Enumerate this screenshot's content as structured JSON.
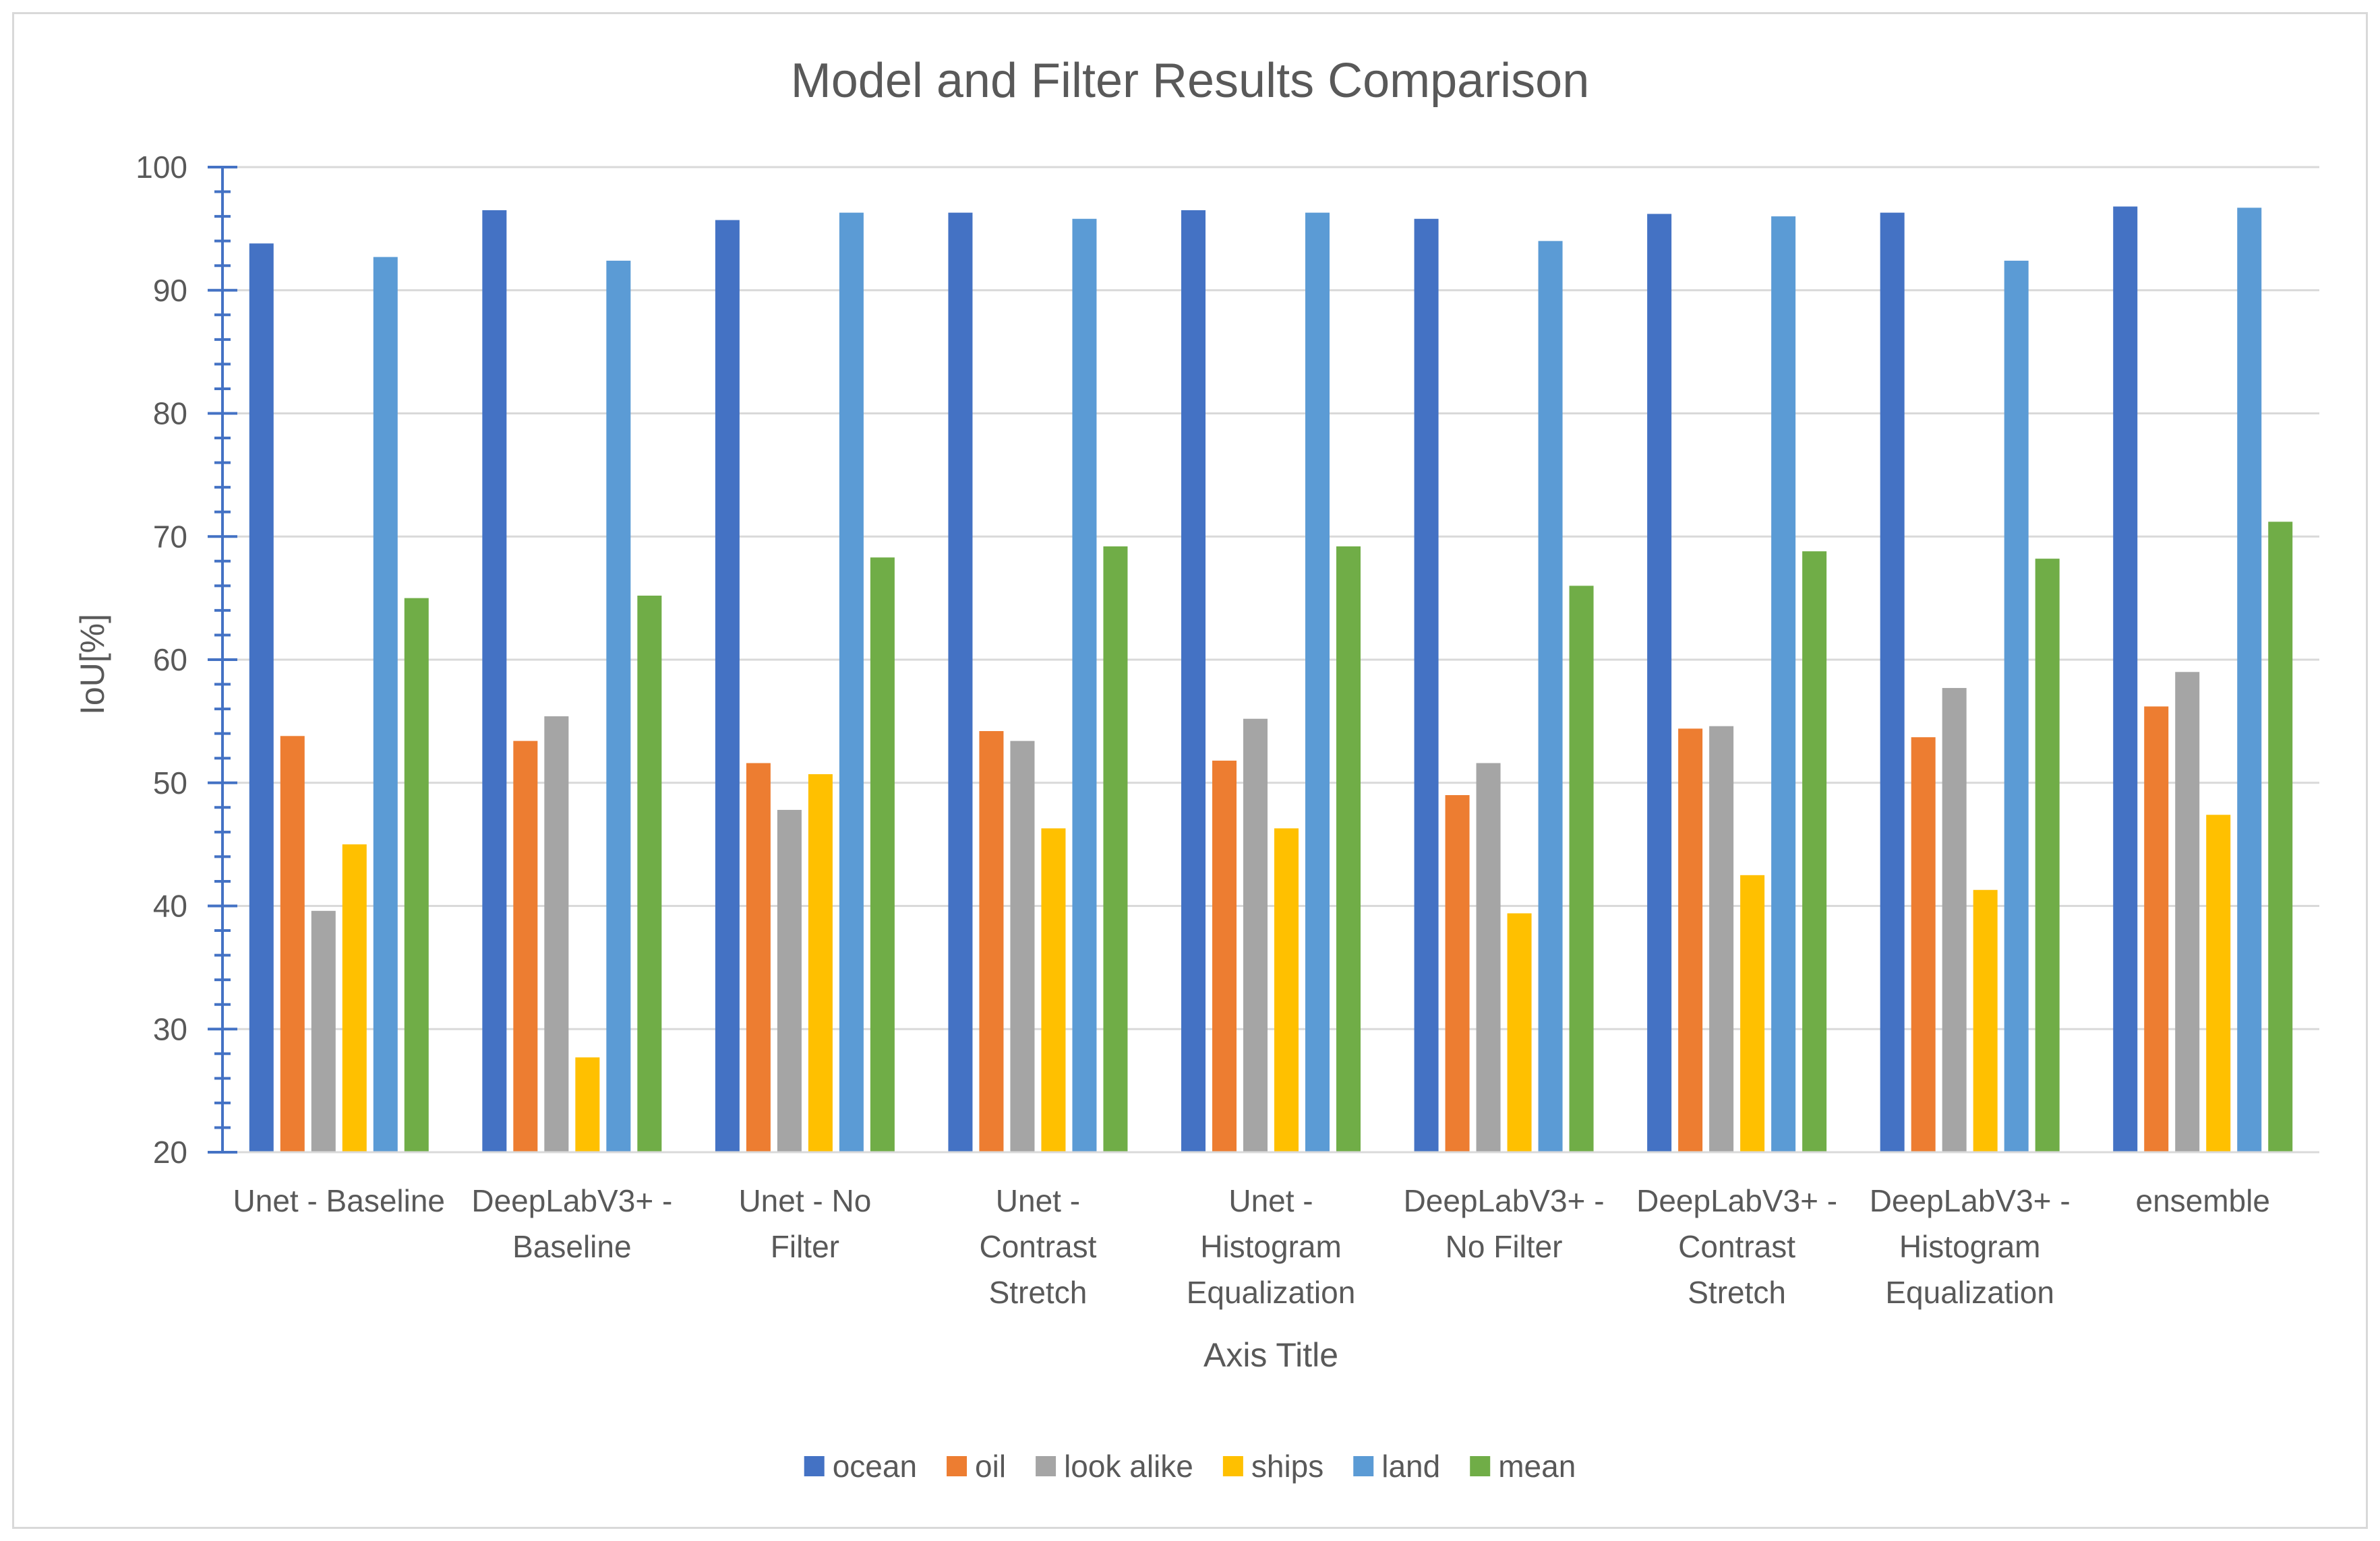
{
  "chart_data": {
    "type": "bar",
    "title": "Model and  Filter Results Comparison",
    "xlabel": "Axis Title",
    "ylabel": "IoU[%]",
    "ylim": [
      20,
      100
    ],
    "yticks": [
      "20",
      "30",
      "40",
      "50",
      "60",
      "70",
      "80",
      "90",
      "100"
    ],
    "grid": true,
    "legend_position": "bottom",
    "categories": [
      [
        "Unet - Baseline"
      ],
      [
        "DeepLabV3+ -",
        "Baseline"
      ],
      [
        "Unet - No",
        "Filter"
      ],
      [
        "Unet -",
        "Contrast",
        "Stretch"
      ],
      [
        "Unet -",
        "Histogram",
        "Equalization"
      ],
      [
        "DeepLabV3+ -",
        "No Filter"
      ],
      [
        "DeepLabV3+ -",
        "Contrast",
        "Stretch"
      ],
      [
        "DeepLabV3+ -",
        "Histogram",
        "Equalization"
      ],
      [
        "ensemble"
      ]
    ],
    "series": [
      {
        "name": "ocean",
        "color": "#4472c4",
        "values": [
          93.8,
          96.5,
          95.7,
          96.3,
          96.5,
          95.8,
          96.2,
          96.3,
          96.8
        ]
      },
      {
        "name": "oil",
        "color": "#ed7d31",
        "values": [
          53.8,
          53.4,
          51.6,
          54.2,
          51.8,
          49.0,
          54.4,
          53.7,
          56.2
        ]
      },
      {
        "name": "look alike",
        "color": "#a5a5a5",
        "values": [
          39.6,
          55.4,
          47.8,
          53.4,
          55.2,
          51.6,
          54.6,
          57.7,
          59.0
        ]
      },
      {
        "name": "ships",
        "color": "#ffc000",
        "values": [
          45.0,
          27.7,
          50.7,
          46.3,
          46.3,
          39.4,
          42.5,
          41.3,
          47.4
        ]
      },
      {
        "name": "land",
        "color": "#5b9bd5",
        "values": [
          92.7,
          92.4,
          96.3,
          95.8,
          96.3,
          94.0,
          96.0,
          92.4,
          96.7
        ]
      },
      {
        "name": "mean",
        "color": "#70ad47",
        "values": [
          65.0,
          65.2,
          68.3,
          69.2,
          69.2,
          66.0,
          68.8,
          68.2,
          71.2
        ]
      }
    ]
  }
}
